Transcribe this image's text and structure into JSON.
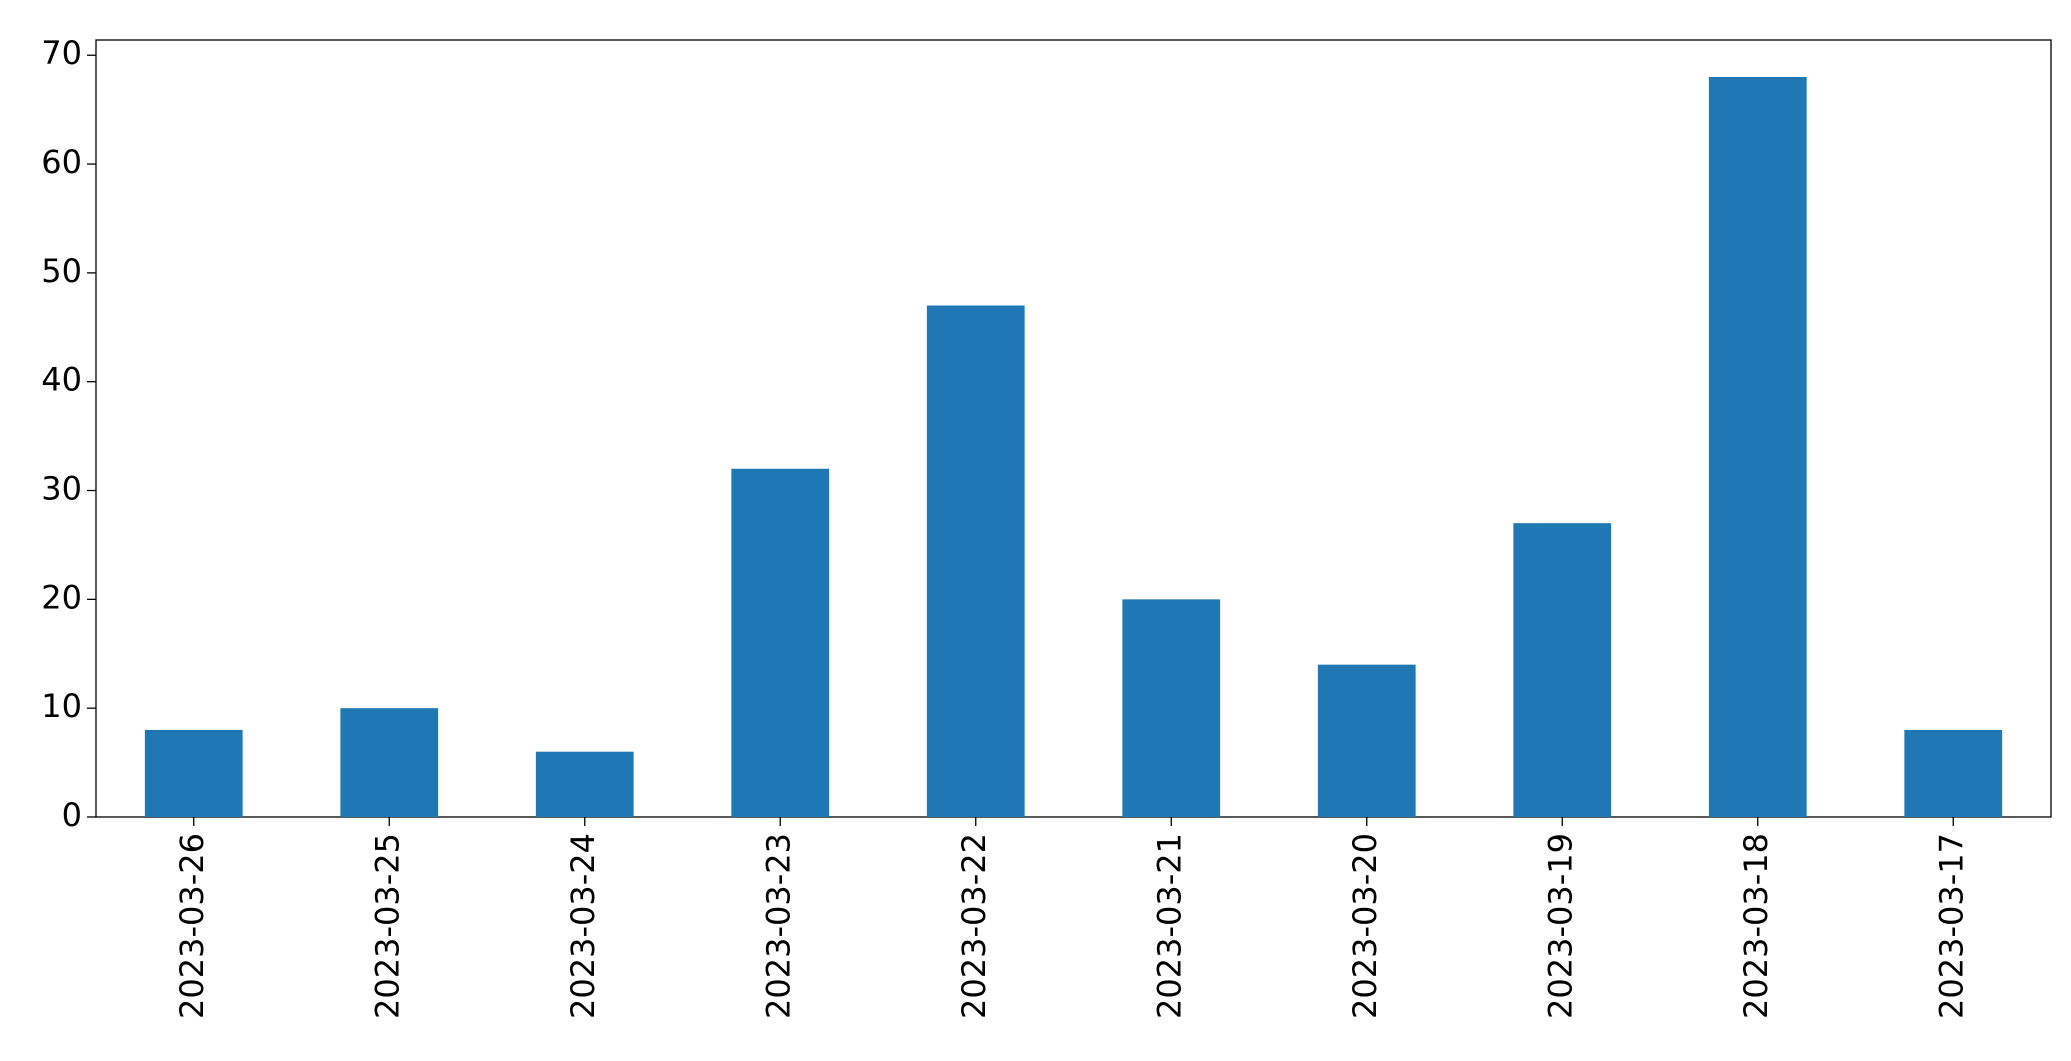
{
  "chart_data": {
    "type": "bar",
    "categories": [
      "2023-03-26",
      "2023-03-25",
      "2023-03-24",
      "2023-03-23",
      "2023-03-22",
      "2023-03-21",
      "2023-03-20",
      "2023-03-19",
      "2023-03-18",
      "2023-03-17"
    ],
    "values": [
      8,
      10,
      6,
      32,
      47,
      20,
      14,
      27,
      68,
      8
    ],
    "color": "#1f77b4",
    "ylim": [
      0,
      71.4
    ],
    "yticks": [
      0,
      10,
      20,
      30,
      40,
      50,
      60,
      70
    ],
    "grid": false
  }
}
